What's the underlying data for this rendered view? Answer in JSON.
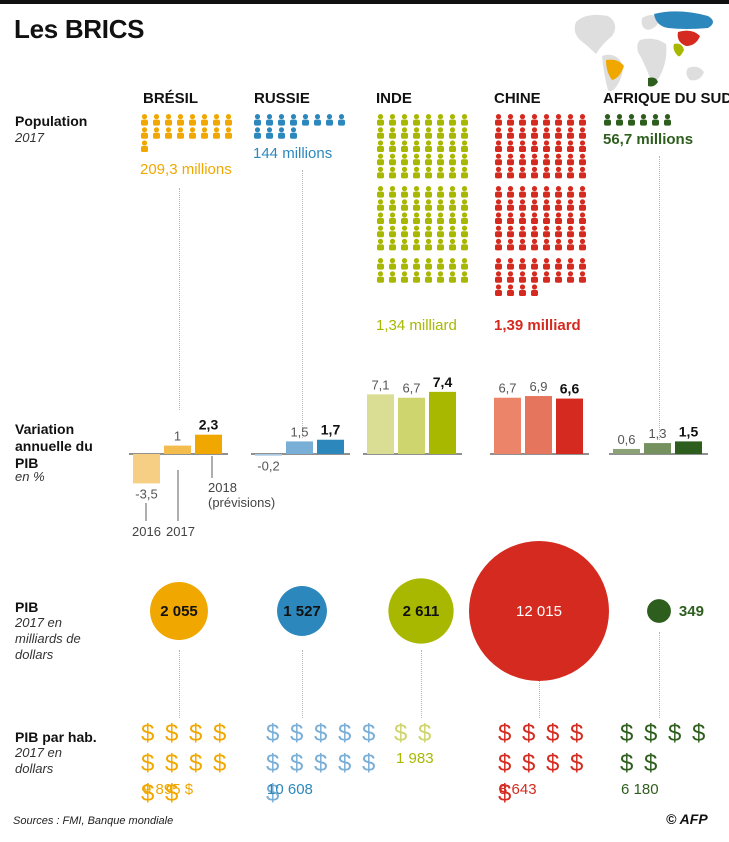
{
  "title": "Les BRICS",
  "rows": {
    "population": {
      "label": "Population",
      "sub": "2017"
    },
    "gdp_growth": {
      "label": "Variation annuelle du PIB",
      "sub": "en %"
    },
    "gdp": {
      "label": "PIB",
      "sub": "2017 en milliards de dollars"
    },
    "gdp_per_capita": {
      "label": "PIB par hab.",
      "sub": "2017 en dollars"
    }
  },
  "countries": [
    {
      "name": "BRÉSIL",
      "color": "#f0a800",
      "light": "#f7cf84",
      "mid": "#f3bc4c",
      "population_label": "209,3 millions",
      "people_icons": 17,
      "growth": [
        -3.5,
        1,
        2.3
      ],
      "growth_labels": [
        "-3,5",
        "1",
        "2,3"
      ],
      "gdp": 2055,
      "gdp_label": "2 055",
      "dollar_signs": 10,
      "per_capita_label": "9 895 $"
    },
    {
      "name": "RUSSIE",
      "color": "#2c88bc",
      "light": "#a9c9e4",
      "mid": "#79aed6",
      "population_label": "144 millions",
      "people_icons": 12,
      "growth": [
        -0.2,
        1.5,
        1.7
      ],
      "growth_labels": [
        "-0,2",
        "1,5",
        "1,7"
      ],
      "gdp": 1527,
      "gdp_label": "1 527",
      "dollar_signs": 11,
      "per_capita_label": "10 608"
    },
    {
      "name": "INDE",
      "color": "#a8b800",
      "light": "#dadd94",
      "mid": "#cfd56e",
      "population_label": "1,34 milliard",
      "people_icons": 96,
      "growth": [
        7.1,
        6.7,
        7.4
      ],
      "growth_labels": [
        "7,1",
        "6,7",
        "7,4"
      ],
      "gdp": 2611,
      "gdp_label": "2 611",
      "dollar_signs": 2,
      "per_capita_label": "1 983"
    },
    {
      "name": "CHINE",
      "color": "#d42a1f",
      "light": "#ec8469",
      "mid": "#e6755e",
      "population_label": "1,39 milliard",
      "people_icons": 100,
      "growth": [
        6.7,
        6.9,
        6.6
      ],
      "growth_labels": [
        "6,7",
        "6,9",
        "6,6"
      ],
      "gdp": 12015,
      "gdp_label": "12 015",
      "dollar_signs": 9,
      "per_capita_label": "8 643"
    },
    {
      "name": "AFRIQUE DU SUD",
      "color": "#2e5e1e",
      "light": "#8aa276",
      "mid": "#74915f",
      "population_label": "56,7 millions",
      "people_icons": 6,
      "growth": [
        0.6,
        1.3,
        1.5
      ],
      "growth_labels": [
        "0,6",
        "1,3",
        "1,5"
      ],
      "gdp": 349,
      "gdp_label": "349",
      "dollar_signs": 6,
      "per_capita_label": "6 180"
    }
  ],
  "year_labels": {
    "y2016": "2016",
    "y2017": "2017",
    "y2018": "2018",
    "y2018_note": "(prévisions)"
  },
  "chart_data": [
    {
      "type": "bar",
      "title": "Variation annuelle du PIB",
      "ylabel": "en %",
      "categories": [
        "2016",
        "2017",
        "2018 (prévisions)"
      ],
      "series": [
        {
          "name": "BRÉSIL",
          "values": [
            -3.5,
            1,
            2.3
          ]
        },
        {
          "name": "RUSSIE",
          "values": [
            -0.2,
            1.5,
            1.7
          ]
        },
        {
          "name": "INDE",
          "values": [
            7.1,
            6.7,
            7.4
          ]
        },
        {
          "name": "CHINE",
          "values": [
            6.7,
            6.9,
            6.6
          ]
        },
        {
          "name": "AFRIQUE DU SUD",
          "values": [
            0.6,
            1.3,
            1.5
          ]
        }
      ]
    },
    {
      "type": "bubble",
      "title": "PIB",
      "ylabel": "2017 en milliards de dollars",
      "categories": [
        "BRÉSIL",
        "RUSSIE",
        "INDE",
        "CHINE",
        "AFRIQUE DU SUD"
      ],
      "values": [
        2055,
        1527,
        2611,
        12015,
        349
      ]
    },
    {
      "type": "table",
      "title": "Population",
      "categories": [
        "BRÉSIL",
        "RUSSIE",
        "INDE",
        "CHINE",
        "AFRIQUE DU SUD"
      ],
      "values": [
        "209,3 millions",
        "144 millions",
        "1,34 milliard",
        "1,39 milliard",
        "56,7 millions"
      ]
    },
    {
      "type": "table",
      "title": "PIB par hab.",
      "categories": [
        "BRÉSIL",
        "RUSSIE",
        "INDE",
        "CHINE",
        "AFRIQUE DU SUD"
      ],
      "values": [
        9895,
        10608,
        1983,
        8643,
        6180
      ]
    }
  ],
  "sources": "Sources : FMI, Banque mondiale",
  "credit": "© AFP"
}
